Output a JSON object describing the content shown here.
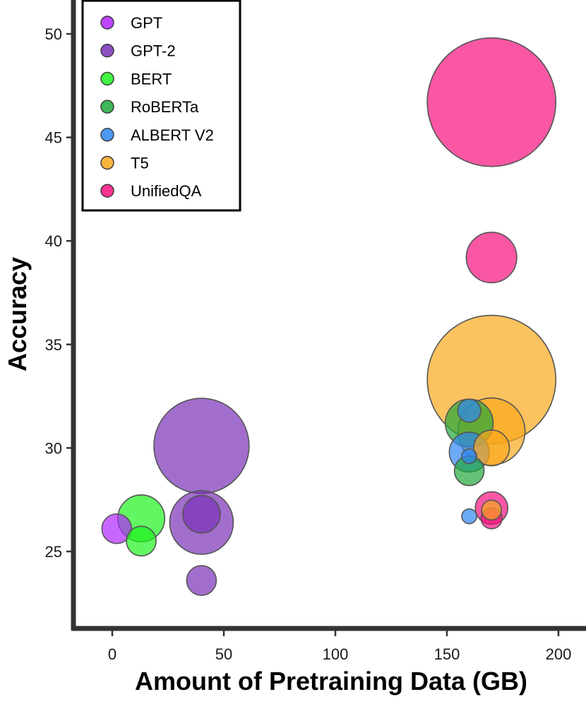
{
  "chart_data": {
    "type": "scatter",
    "title": "",
    "xlabel": "Amount of Pretraining Data (GB)",
    "ylabel": "Accuracy",
    "xlim": [
      -18,
      212
    ],
    "ylim": [
      21.3,
      51.6
    ],
    "xticks": [
      0,
      50,
      100,
      150,
      200
    ],
    "yticks": [
      25,
      30,
      35,
      40,
      45,
      50
    ],
    "xtick_labels": [
      "0",
      "50",
      "100",
      "150",
      "200"
    ],
    "ytick_labels": [
      "25",
      "30",
      "35",
      "40",
      "45",
      "50"
    ],
    "legend_position": "top-left",
    "size_encoding": "bubble area proportional to model size",
    "series": [
      {
        "name": "GPT",
        "color": "#b026ff",
        "points": [
          {
            "x": 2,
            "y": 26.1,
            "size": 1.0
          }
        ]
      },
      {
        "name": "GPT-2",
        "color": "#7b30b8",
        "points": [
          {
            "x": 40,
            "y": 23.6,
            "size": 1.0
          },
          {
            "x": 40,
            "y": 26.4,
            "size": 4.6
          },
          {
            "x": 40,
            "y": 26.8,
            "size": 1.6
          },
          {
            "x": 40,
            "y": 30.1,
            "size": 10.3
          }
        ]
      },
      {
        "name": "BERT",
        "color": "#1ff21f",
        "points": [
          {
            "x": 13,
            "y": 25.5,
            "size": 1.0
          },
          {
            "x": 13,
            "y": 26.6,
            "size": 2.5
          }
        ]
      },
      {
        "name": "RoBERTa",
        "color": "#21a83a",
        "points": [
          {
            "x": 160,
            "y": 28.9,
            "size": 1.0
          },
          {
            "x": 160,
            "y": 31.2,
            "size": 2.6
          }
        ]
      },
      {
        "name": "ALBERT V2",
        "color": "#2e86f2",
        "points": [
          {
            "x": 160,
            "y": 26.7,
            "size": 0.25
          },
          {
            "x": 160,
            "y": 29.6,
            "size": 0.25
          },
          {
            "x": 160,
            "y": 29.8,
            "size": 1.8
          },
          {
            "x": 160,
            "y": 31.8,
            "size": 0.6
          }
        ]
      },
      {
        "name": "T5",
        "color": "#f9a81c",
        "points": [
          {
            "x": 170,
            "y": 27.0,
            "size": 0.45
          },
          {
            "x": 170,
            "y": 30.0,
            "size": 1.45
          },
          {
            "x": 170,
            "y": 30.8,
            "size": 5.1
          },
          {
            "x": 170,
            "y": 33.3,
            "size": 18.8
          }
        ]
      },
      {
        "name": "UnifiedQA",
        "color": "#f7107e",
        "points": [
          {
            "x": 170,
            "y": 26.6,
            "size": 0.5
          },
          {
            "x": 170,
            "y": 27.1,
            "size": 1.2
          },
          {
            "x": 170,
            "y": 39.2,
            "size": 2.9
          },
          {
            "x": 170,
            "y": 46.7,
            "size": 18.8
          }
        ]
      }
    ]
  }
}
